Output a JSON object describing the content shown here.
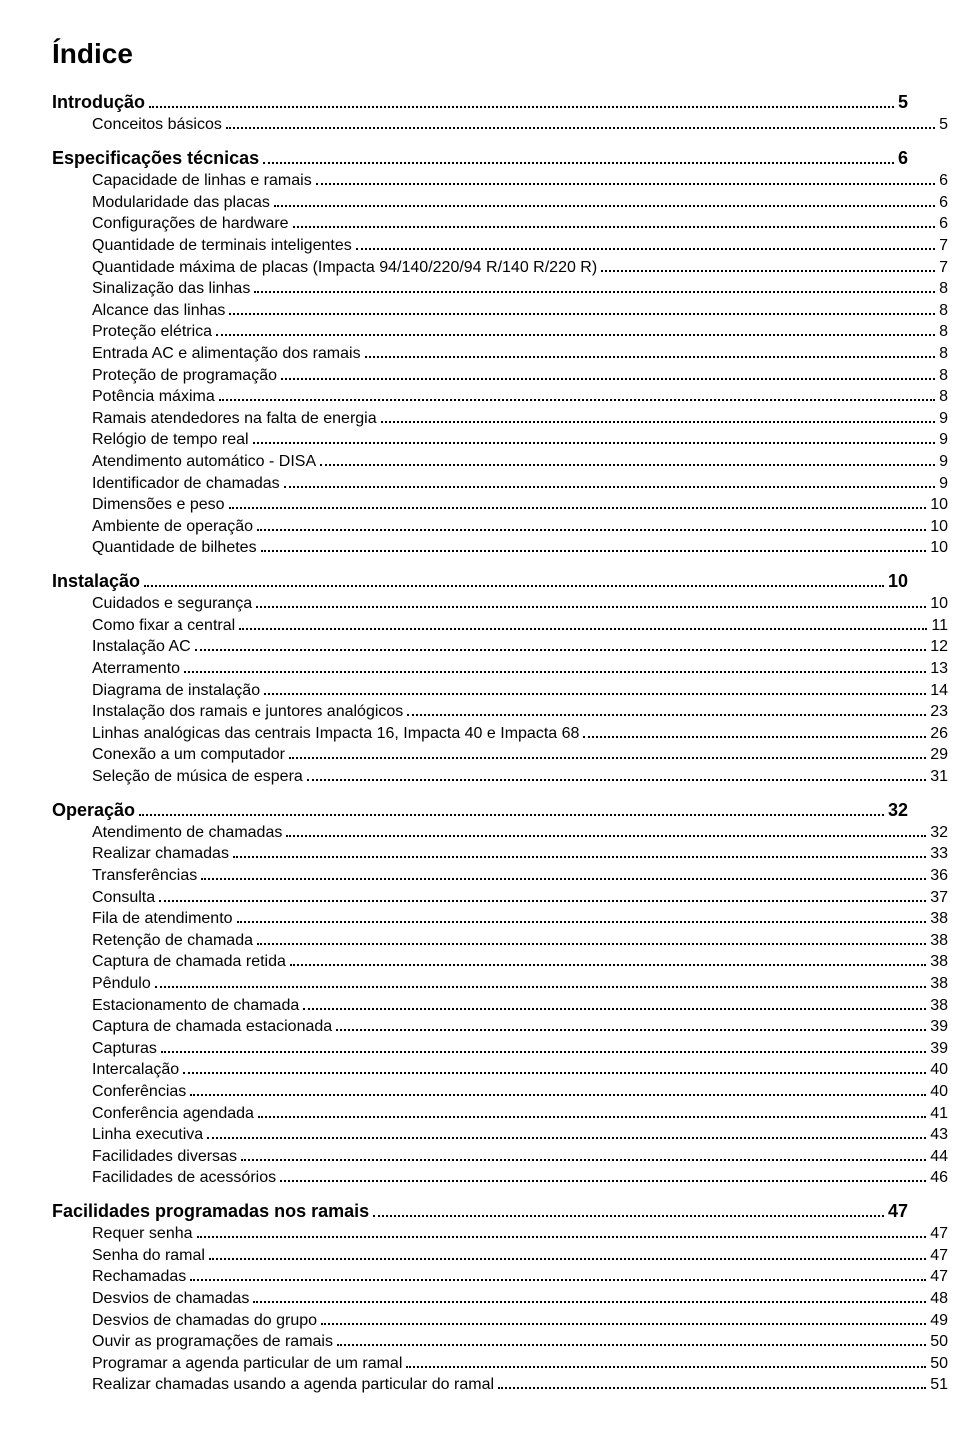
{
  "title": "Índice",
  "sections": [
    {
      "heading": {
        "text": "Introdução",
        "page": "5"
      },
      "items": [
        {
          "text": "Conceitos básicos",
          "page": "5"
        }
      ]
    },
    {
      "heading": {
        "text": "Especificações técnicas",
        "page": "6"
      },
      "items": [
        {
          "text": "Capacidade de linhas e ramais",
          "page": "6"
        },
        {
          "text": "Modularidade das placas",
          "page": "6"
        },
        {
          "text": "Configurações de hardware",
          "page": "6"
        },
        {
          "text": "Quantidade de terminais inteligentes",
          "page": "7"
        },
        {
          "text": "Quantidade máxima de placas (Impacta 94/140/220/94 R/140 R/220 R)",
          "page": "7"
        },
        {
          "text": "Sinalização das linhas",
          "page": "8"
        },
        {
          "text": "Alcance das linhas",
          "page": "8"
        },
        {
          "text": "Proteção elétrica",
          "page": "8"
        },
        {
          "text": "Entrada AC e alimentação dos ramais",
          "page": "8"
        },
        {
          "text": "Proteção de programação",
          "page": "8"
        },
        {
          "text": "Potência máxima",
          "page": "8"
        },
        {
          "text": "Ramais atendedores na falta de energia",
          "page": "9"
        },
        {
          "text": "Relógio de tempo real",
          "page": "9"
        },
        {
          "text": "Atendimento automático - DISA",
          "page": "9"
        },
        {
          "text": "Identificador de chamadas",
          "page": "9"
        },
        {
          "text": "Dimensões e peso",
          "page": "10"
        },
        {
          "text": "Ambiente de operação",
          "page": "10"
        },
        {
          "text": "Quantidade de bilhetes",
          "page": "10"
        }
      ]
    },
    {
      "heading": {
        "text": "Instalação",
        "page": "10"
      },
      "items": [
        {
          "text": "Cuidados e segurança",
          "page": "10"
        },
        {
          "text": "Como fixar a central",
          "page": "11"
        },
        {
          "text": "Instalação AC",
          "page": "12"
        },
        {
          "text": "Aterramento",
          "page": "13"
        },
        {
          "text": "Diagrama de instalação",
          "page": "14"
        },
        {
          "text": "Instalação dos ramais e juntores analógicos",
          "page": "23"
        },
        {
          "text": "Linhas analógicas das centrais Impacta 16, Impacta 40 e Impacta 68",
          "page": "26"
        },
        {
          "text": "Conexão a um computador",
          "page": "29"
        },
        {
          "text": "Seleção de música de espera",
          "page": "31"
        }
      ]
    },
    {
      "heading": {
        "text": "Operação",
        "page": "32"
      },
      "items": [
        {
          "text": "Atendimento de chamadas",
          "page": "32"
        },
        {
          "text": "Realizar chamadas",
          "page": "33"
        },
        {
          "text": "Transferências",
          "page": "36"
        },
        {
          "text": "Consulta",
          "page": "37"
        },
        {
          "text": "Fila de atendimento",
          "page": "38"
        },
        {
          "text": "Retenção de chamada",
          "page": "38"
        },
        {
          "text": "Captura de chamada retida",
          "page": "38"
        },
        {
          "text": "Pêndulo",
          "page": "38"
        },
        {
          "text": "Estacionamento de chamada",
          "page": "38"
        },
        {
          "text": "Captura de chamada estacionada",
          "page": "39"
        },
        {
          "text": "Capturas",
          "page": "39"
        },
        {
          "text": "Intercalação",
          "page": "40"
        },
        {
          "text": "Conferências",
          "page": "40"
        },
        {
          "text": "Conferência agendada",
          "page": "41"
        },
        {
          "text": "Linha executiva",
          "page": "43"
        },
        {
          "text": "Facilidades diversas",
          "page": "44"
        },
        {
          "text": "Facilidades de acessórios",
          "page": "46"
        }
      ]
    },
    {
      "heading": {
        "text": "Facilidades programadas nos ramais",
        "page": "47"
      },
      "items": [
        {
          "text": "Requer senha",
          "page": "47"
        },
        {
          "text": "Senha do ramal",
          "page": "47"
        },
        {
          "text": "Rechamadas",
          "page": "47"
        },
        {
          "text": "Desvios de chamadas",
          "page": "48"
        },
        {
          "text": "Desvios de chamadas do grupo",
          "page": "49"
        },
        {
          "text": "Ouvir as programações de ramais",
          "page": "50"
        },
        {
          "text": "Programar a agenda particular de um ramal",
          "page": "50"
        },
        {
          "text": "Realizar chamadas usando a agenda particular do ramal",
          "page": "51"
        }
      ]
    }
  ]
}
